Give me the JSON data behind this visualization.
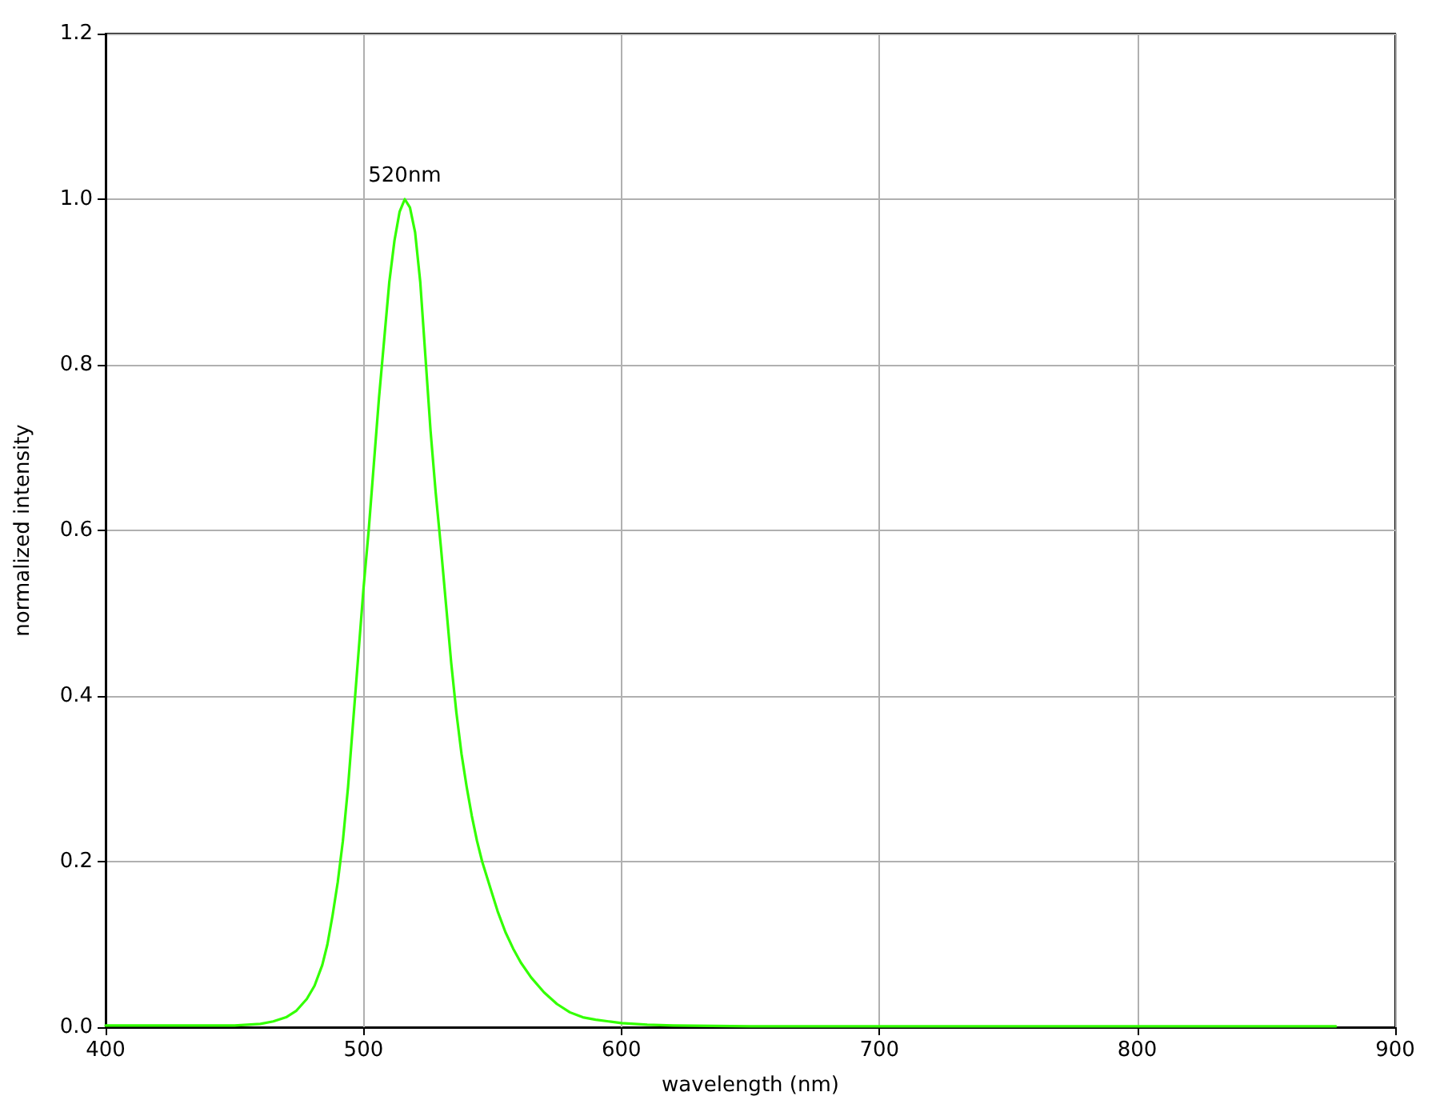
{
  "chart_data": {
    "type": "line",
    "xlabel": "wavelength (nm)",
    "ylabel": "normalized intensity",
    "color": "#33ff00",
    "x": [
      400,
      420,
      440,
      450,
      455,
      460,
      465,
      470,
      474,
      478,
      481,
      484,
      486,
      488,
      490,
      492,
      494,
      496,
      498,
      500,
      502,
      504,
      506,
      508,
      510,
      512,
      514,
      516,
      518,
      520,
      522,
      524,
      526,
      528,
      530,
      532,
      534,
      536,
      538,
      540,
      542,
      544,
      546,
      548,
      550,
      552,
      555,
      558,
      561,
      565,
      570,
      575,
      580,
      585,
      590,
      595,
      600,
      610,
      620,
      650,
      700,
      750,
      800,
      850,
      877
    ],
    "values": [
      0.002,
      0.002,
      0.002,
      0.002,
      0.003,
      0.004,
      0.007,
      0.012,
      0.02,
      0.034,
      0.05,
      0.075,
      0.1,
      0.135,
      0.175,
      0.225,
      0.29,
      0.37,
      0.45,
      0.53,
      0.6,
      0.68,
      0.76,
      0.83,
      0.9,
      0.95,
      0.985,
      1.0,
      0.99,
      0.96,
      0.9,
      0.81,
      0.72,
      0.645,
      0.58,
      0.51,
      0.44,
      0.38,
      0.33,
      0.29,
      0.255,
      0.225,
      0.2,
      0.18,
      0.16,
      0.14,
      0.115,
      0.095,
      0.078,
      0.06,
      0.042,
      0.028,
      0.018,
      0.012,
      0.009,
      0.007,
      0.005,
      0.003,
      0.002,
      0.001,
      0.001,
      0.001,
      0.001,
      0.001,
      0.001
    ],
    "xlim": [
      400,
      900
    ],
    "xticks": [
      400,
      500,
      600,
      700,
      800,
      900
    ],
    "ylim": [
      0,
      1.2
    ],
    "yticks": [
      {
        "value": 0,
        "label": "0.0"
      },
      0.2,
      0.4,
      0.6,
      0.8,
      {
        "value": 1,
        "label": "1.0"
      },
      1.2
    ],
    "grid": true,
    "annotations": [
      {
        "text": "520nm",
        "x": 516,
        "y": 1.0
      }
    ]
  }
}
